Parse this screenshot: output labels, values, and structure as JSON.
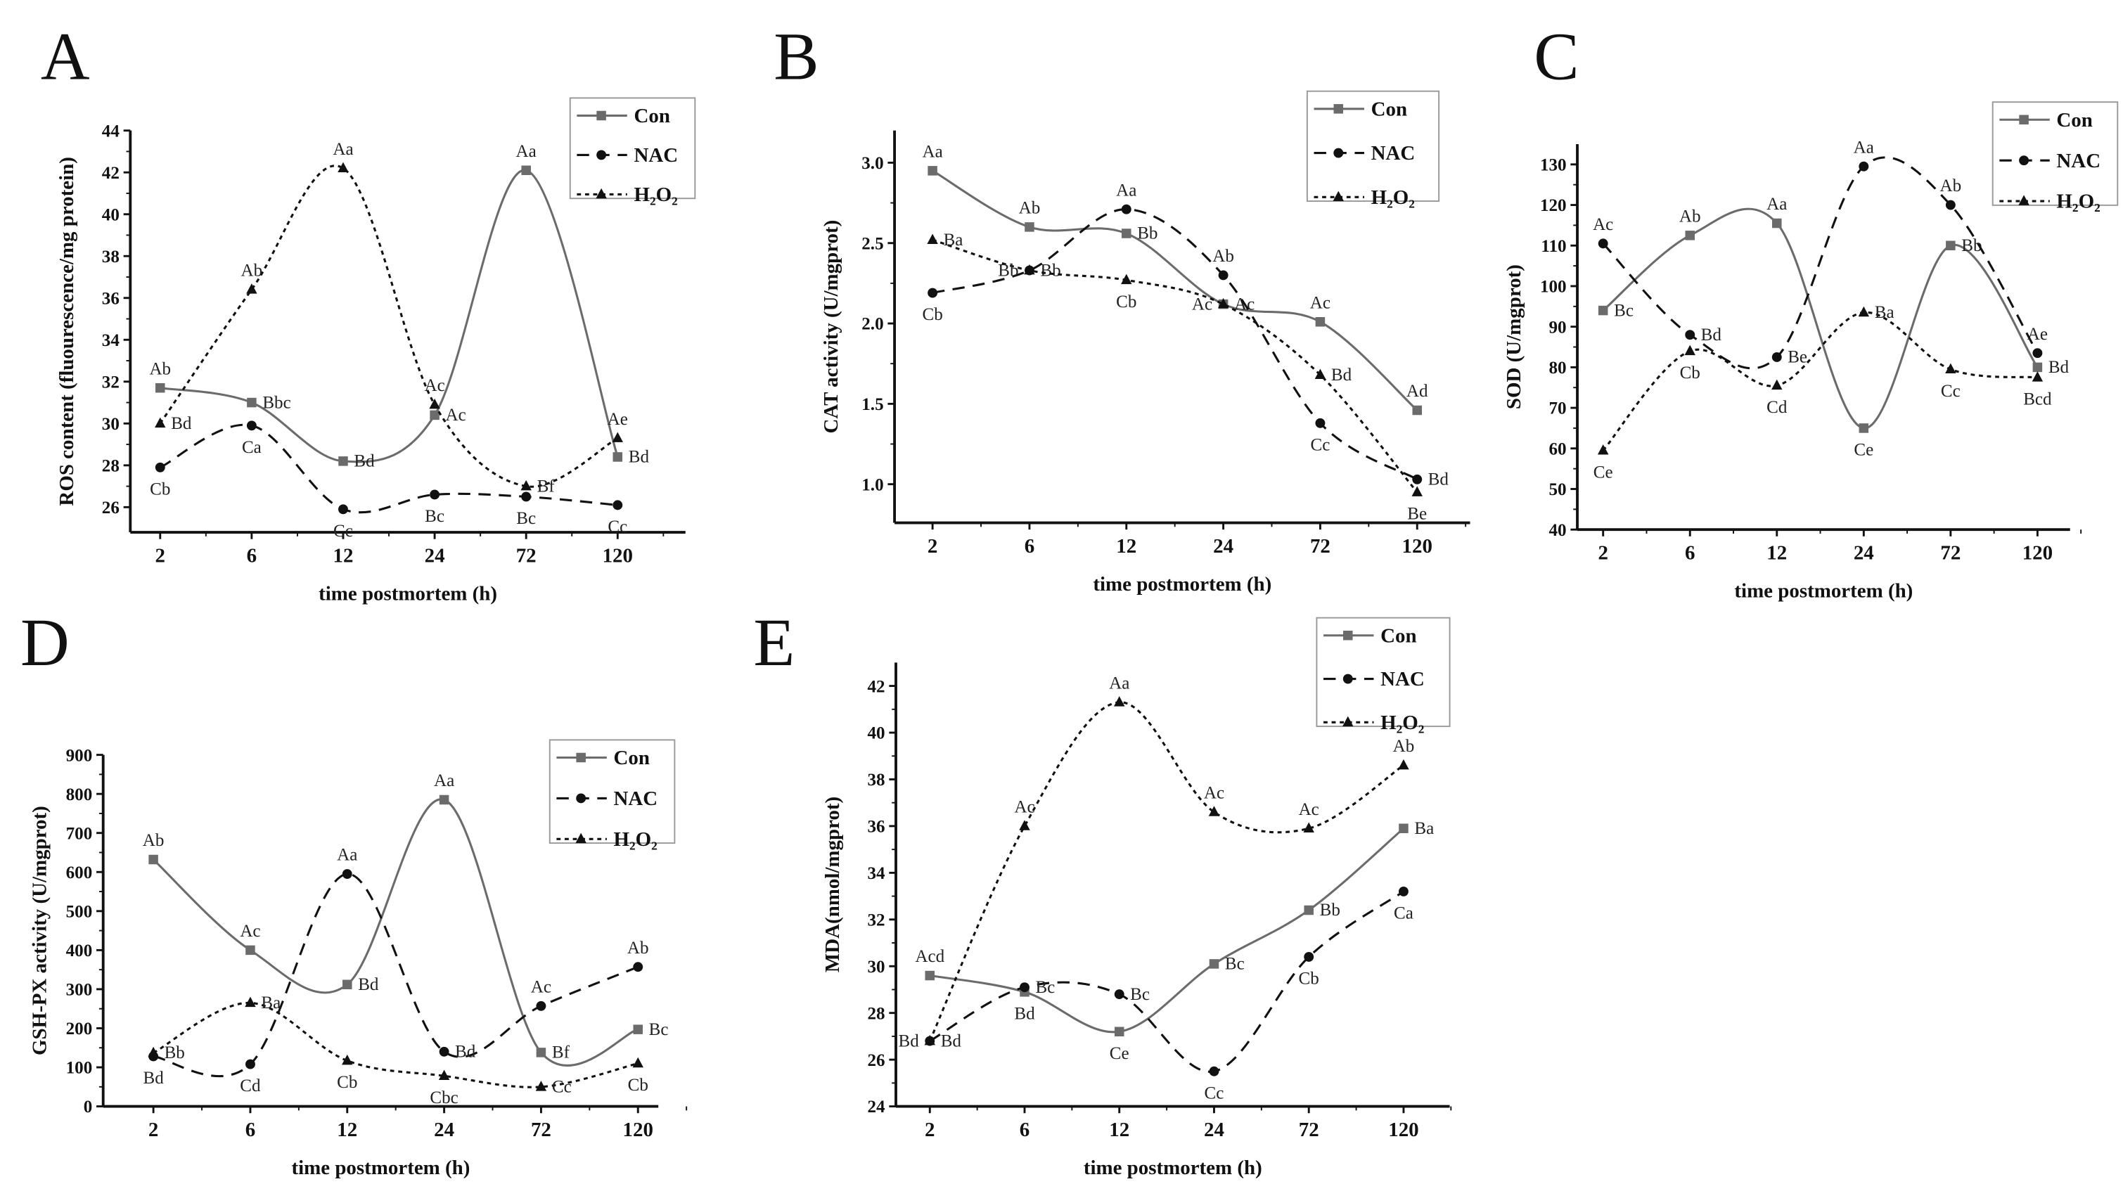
{
  "figure": {
    "x_categories": [
      "2",
      "6",
      "12",
      "24",
      "72",
      "120"
    ],
    "xlabel": "time postmortem (h)",
    "legend": [
      "Con",
      "NAC",
      "H₂O₂"
    ],
    "colors": {
      "Con": "#6b6b6b",
      "NAC": "#111111",
      "H2O2": "#111111"
    }
  },
  "chart_data": [
    {
      "panel": "A",
      "type": "line",
      "ylabel": "ROS content (fluourescence/mg protein)",
      "xlabel": "time postmortem (h)",
      "categories": [
        "2",
        "6",
        "12",
        "24",
        "72",
        "120"
      ],
      "ylim": [
        24.8,
        44
      ],
      "yticks": [
        26,
        28,
        30,
        32,
        34,
        36,
        38,
        40,
        42,
        44
      ],
      "legend_position": "top-right",
      "series": [
        {
          "name": "Con",
          "values": [
            31.7,
            31.0,
            28.2,
            30.4,
            42.1,
            28.4
          ],
          "labels": [
            "Ab",
            "Bbc",
            "Bd",
            "Ac",
            "Aa",
            "Bd"
          ]
        },
        {
          "name": "NAC",
          "values": [
            27.9,
            29.9,
            25.9,
            26.6,
            26.5,
            26.1
          ],
          "labels": [
            "Cb",
            "Ca",
            "Cc",
            "Bc",
            "Bc",
            "Cc"
          ]
        },
        {
          "name": "H₂O₂",
          "values": [
            30.0,
            36.4,
            42.2,
            30.9,
            27.0,
            29.3
          ],
          "labels": [
            "Bd",
            "Ab",
            "Aa",
            "Ac",
            "Bf",
            "Ae"
          ]
        }
      ]
    },
    {
      "panel": "B",
      "type": "line",
      "ylabel": "CAT activity (U/mgprot)",
      "xlabel": "time postmortem (h)",
      "categories": [
        "2",
        "6",
        "12",
        "24",
        "72",
        "120"
      ],
      "ylim": [
        0.76,
        3.2
      ],
      "yticks": [
        "1.0",
        "1.5",
        "2.0",
        "2.5",
        "3.0"
      ],
      "legend_position": "top-right",
      "series": [
        {
          "name": "Con",
          "values": [
            2.95,
            2.6,
            2.56,
            2.12,
            2.01,
            1.46
          ],
          "labels": [
            "Aa",
            "Ab",
            "Bb",
            "Ac",
            "Ac",
            "Ad"
          ]
        },
        {
          "name": "NAC",
          "values": [
            2.19,
            2.33,
            2.71,
            2.3,
            1.38,
            1.03
          ],
          "labels": [
            "Cb",
            "Bb",
            "Aa",
            "Ab",
            "Cc",
            "Bd"
          ]
        },
        {
          "name": "H₂O₂",
          "values": [
            2.52,
            2.33,
            2.27,
            2.12,
            1.68,
            0.95
          ],
          "labels": [
            "Ba",
            "Bb",
            "Cb",
            "Ac",
            "Bd",
            "Be"
          ]
        }
      ]
    },
    {
      "panel": "C",
      "type": "line",
      "ylabel": "SOD (U/mgprot)",
      "xlabel": "time postmortem (h)",
      "categories": [
        "2",
        "6",
        "12",
        "24",
        "72",
        "120"
      ],
      "ylim": [
        40,
        135
      ],
      "yticks": [
        40,
        50,
        60,
        70,
        80,
        90,
        100,
        110,
        120,
        130
      ],
      "legend_position": "top-right",
      "series": [
        {
          "name": "Con",
          "values": [
            94,
            112.5,
            115.5,
            65,
            110,
            80
          ],
          "labels": [
            "Bc",
            "Ab",
            "Aa",
            "Ce",
            "Bb",
            "Bd"
          ]
        },
        {
          "name": "NAC",
          "values": [
            110.5,
            88,
            82.5,
            129.5,
            120,
            83.5
          ],
          "labels": [
            "Ac",
            "Bd",
            "Be",
            "Aa",
            "Ab",
            "Ae"
          ]
        },
        {
          "name": "H₂O₂",
          "values": [
            59.5,
            84,
            75.5,
            93.5,
            79.5,
            77.5
          ],
          "labels": [
            "Ce",
            "Cb",
            "Cd",
            "Ba",
            "Cc",
            "Bcd"
          ]
        }
      ]
    },
    {
      "panel": "D",
      "type": "line",
      "ylabel": "GSH-PX activity (U/mgprot)",
      "xlabel": "time postmortem (h)",
      "categories": [
        "2",
        "6",
        "12",
        "24",
        "72",
        "120"
      ],
      "ylim": [
        0,
        900
      ],
      "yticks": [
        0,
        100,
        200,
        300,
        400,
        500,
        600,
        700,
        800,
        900
      ],
      "legend_position": "top-right",
      "series": [
        {
          "name": "Con",
          "values": [
            632,
            400,
            312,
            785,
            138,
            197
          ],
          "labels": [
            "Ab",
            "Ac",
            "Bd",
            "Aa",
            "Bf",
            "Bc"
          ]
        },
        {
          "name": "NAC",
          "values": [
            128,
            108,
            595,
            140,
            257,
            357
          ],
          "labels": [
            "Bd",
            "Cd",
            "Aa",
            "Bd",
            "Ac",
            "Ab"
          ]
        },
        {
          "name": "H₂O₂",
          "values": [
            137,
            265,
            117,
            78,
            50,
            110
          ],
          "labels": [
            "Bb",
            "Ba",
            "Cb",
            "Cbc",
            "Cc",
            "Cb"
          ]
        }
      ]
    },
    {
      "panel": "E",
      "type": "line",
      "ylabel": "MDA(nmol/mgprot)",
      "xlabel": "time postmortem (h)",
      "categories": [
        "2",
        "6",
        "12",
        "24",
        "72",
        "120"
      ],
      "ylim": [
        24,
        43
      ],
      "yticks": [
        24,
        26,
        28,
        30,
        32,
        34,
        36,
        38,
        40,
        42
      ],
      "legend_position": "top-right",
      "series": [
        {
          "name": "Con",
          "values": [
            29.6,
            28.9,
            27.2,
            30.1,
            32.4,
            35.9
          ],
          "labels": [
            "Acd",
            "Bd",
            "Ce",
            "Bc",
            "Bb",
            "Ba"
          ]
        },
        {
          "name": "NAC",
          "values": [
            26.8,
            29.1,
            28.8,
            25.5,
            30.4,
            33.2
          ],
          "labels": [
            "Bd",
            "Bc",
            "Bc",
            "Cc",
            "Cb",
            "Ca"
          ]
        },
        {
          "name": "H₂O₂",
          "values": [
            26.8,
            36.0,
            41.3,
            36.6,
            35.9,
            38.6
          ],
          "labels": [
            "Bd",
            "Ac",
            "Aa",
            "Ac",
            "Ac",
            "Ab"
          ]
        }
      ]
    }
  ]
}
